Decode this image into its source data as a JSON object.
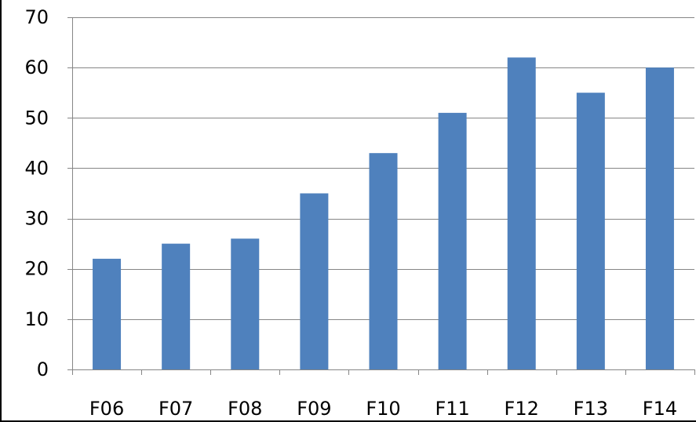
{
  "chart_data": {
    "type": "bar",
    "title": "",
    "xlabel": "",
    "ylabel": "",
    "categories": [
      "F06",
      "F07",
      "F08",
      "F09",
      "F10",
      "F11",
      "F12",
      "F13",
      "F14"
    ],
    "values": [
      22,
      25,
      26,
      35,
      43,
      51,
      62,
      55,
      60
    ],
    "ylim": [
      0,
      70
    ],
    "yticks": [
      "0",
      "10",
      "20",
      "30",
      "40",
      "50",
      "60",
      "70"
    ],
    "grid": true,
    "legend": "none",
    "bar_color": "#4F81BD",
    "grid_color": "#868686",
    "axis_color": "#868686"
  }
}
